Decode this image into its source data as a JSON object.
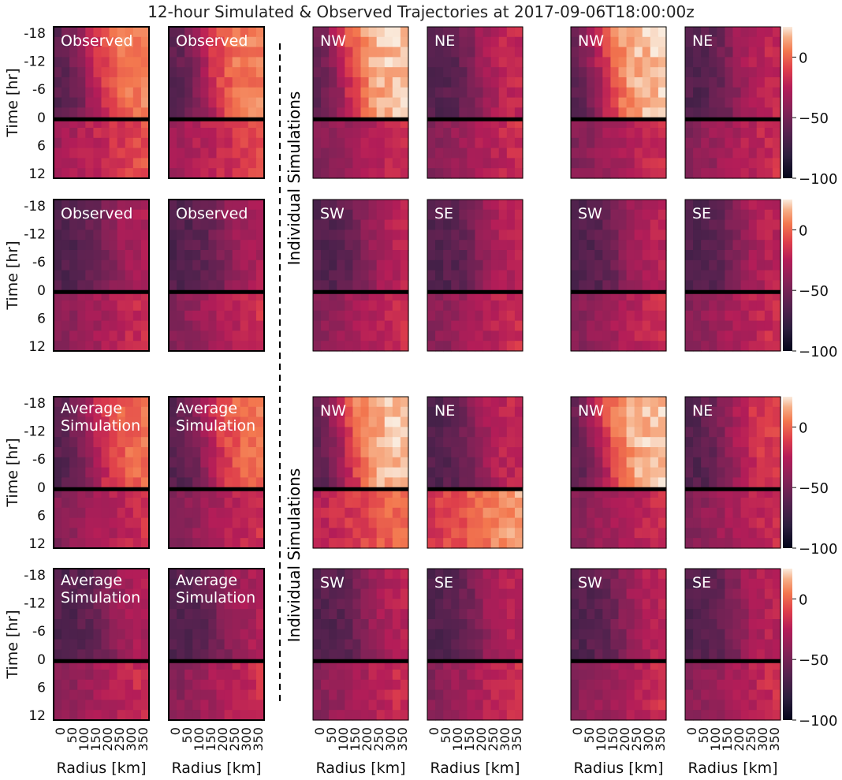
{
  "title": "12-hour Simulated & Observed Trajectories at 2017-09-06T18:00:00z",
  "time_axis": {
    "label": "Time [hr]",
    "ticks": [
      "-18",
      "-12",
      "-6",
      "0",
      "6",
      "12"
    ]
  },
  "radius_axis": {
    "label": "Radius [km]",
    "ticks": [
      "0",
      "50",
      "100",
      "150",
      "200",
      "250",
      "300",
      "350"
    ]
  },
  "side_label": "Individual Simulations",
  "colorbar": {
    "ticks": [
      "0",
      "−50",
      "−100"
    ],
    "range": [
      -100,
      25
    ],
    "colormap": "rocket"
  },
  "panels": {
    "observed": "Observed",
    "average_line1": "Average",
    "average_line2": "Simulation",
    "nw": "NW",
    "ne": "NE",
    "sw": "SW",
    "se": "SE"
  },
  "chart_data": {
    "type": "heatmap",
    "title": "12-hour Simulated & Observed Trajectories at 2017-09-06T18:00:00z",
    "xlabel": "Radius [km]",
    "ylabel": "Time [hr]",
    "x_range_km": [
      0,
      400
    ],
    "y_range_hr": [
      -18,
      12
    ],
    "value_range": [
      -100,
      25
    ],
    "reference_line_hr": 0,
    "grid": "4 row groups x 6 panels: 2 Observed/Average Simulation panels + 4 quadrant simulations",
    "rows": [
      {
        "left_label": "Observed",
        "quadrants": [
          "NW",
          "NE",
          "NW",
          "NE"
        ]
      },
      {
        "left_label": "Observed",
        "quadrants": [
          "SW",
          "SE",
          "SW",
          "SE"
        ]
      },
      {
        "left_label": "Average Simulation",
        "quadrants": [
          "NW",
          "NE",
          "NW",
          "NE"
        ]
      },
      {
        "left_label": "Average Simulation",
        "quadrants": [
          "SW",
          "SE",
          "SW",
          "SE"
        ]
      }
    ],
    "approx_values": {
      "inner_radius_pre_zero": -65,
      "outer_radius_pre_zero_nw": 20,
      "post_zero_typical": -40
    }
  }
}
